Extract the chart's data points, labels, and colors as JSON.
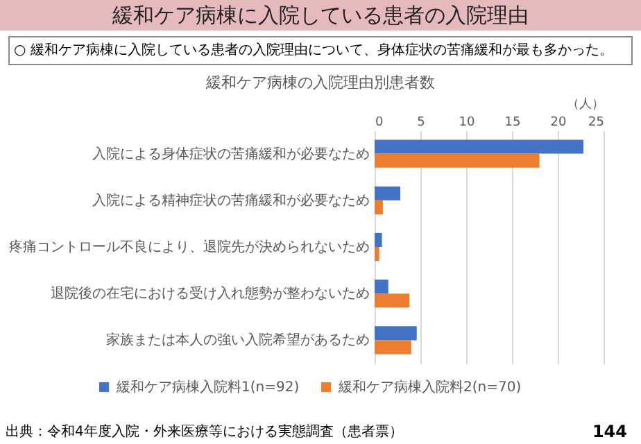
{
  "chart_data": {
    "type": "bar",
    "orientation": "horizontal",
    "title": "緩和ケア病棟に入院している患者の入院理由",
    "subtitle": "○ 緩和ケア病棟に入院している患者の入院理由について、身体症状の苦痛緩和が最も多かった。",
    "annotations": [
      "緩和ケア病棟の入院理由別患者数",
      "出典：令和4年度入院・外来医療等における実態調査（患者票）",
      "144"
    ],
    "xlabel": "（人）",
    "categories": [
      "入院による身体症状の苦痛緩和が必要なため",
      "入院による精神症状の苦痛緩和が必要なため",
      "疼痛コントロール不良により、退院先が決められないため",
      "退院後の在宅における受け入れ態勢が整わないため",
      "家族または本人の強い入院希望があるため"
    ],
    "series": [
      {
        "name": "緩和ケア病棟入院料1(n=92)",
        "color": "#4472c4",
        "values": [
          22.8,
          2.8,
          0.8,
          1.5,
          4.6
        ]
      },
      {
        "name": "緩和ケア病棟入院料2(n=70)",
        "color": "#ed7d31",
        "values": [
          18,
          0.9,
          0.5,
          3.8,
          4
        ]
      }
    ],
    "xlim": [
      0,
      25
    ],
    "xticks": [
      0,
      5,
      10,
      15,
      20,
      25
    ],
    "grid": "x",
    "legend": "bottom"
  }
}
